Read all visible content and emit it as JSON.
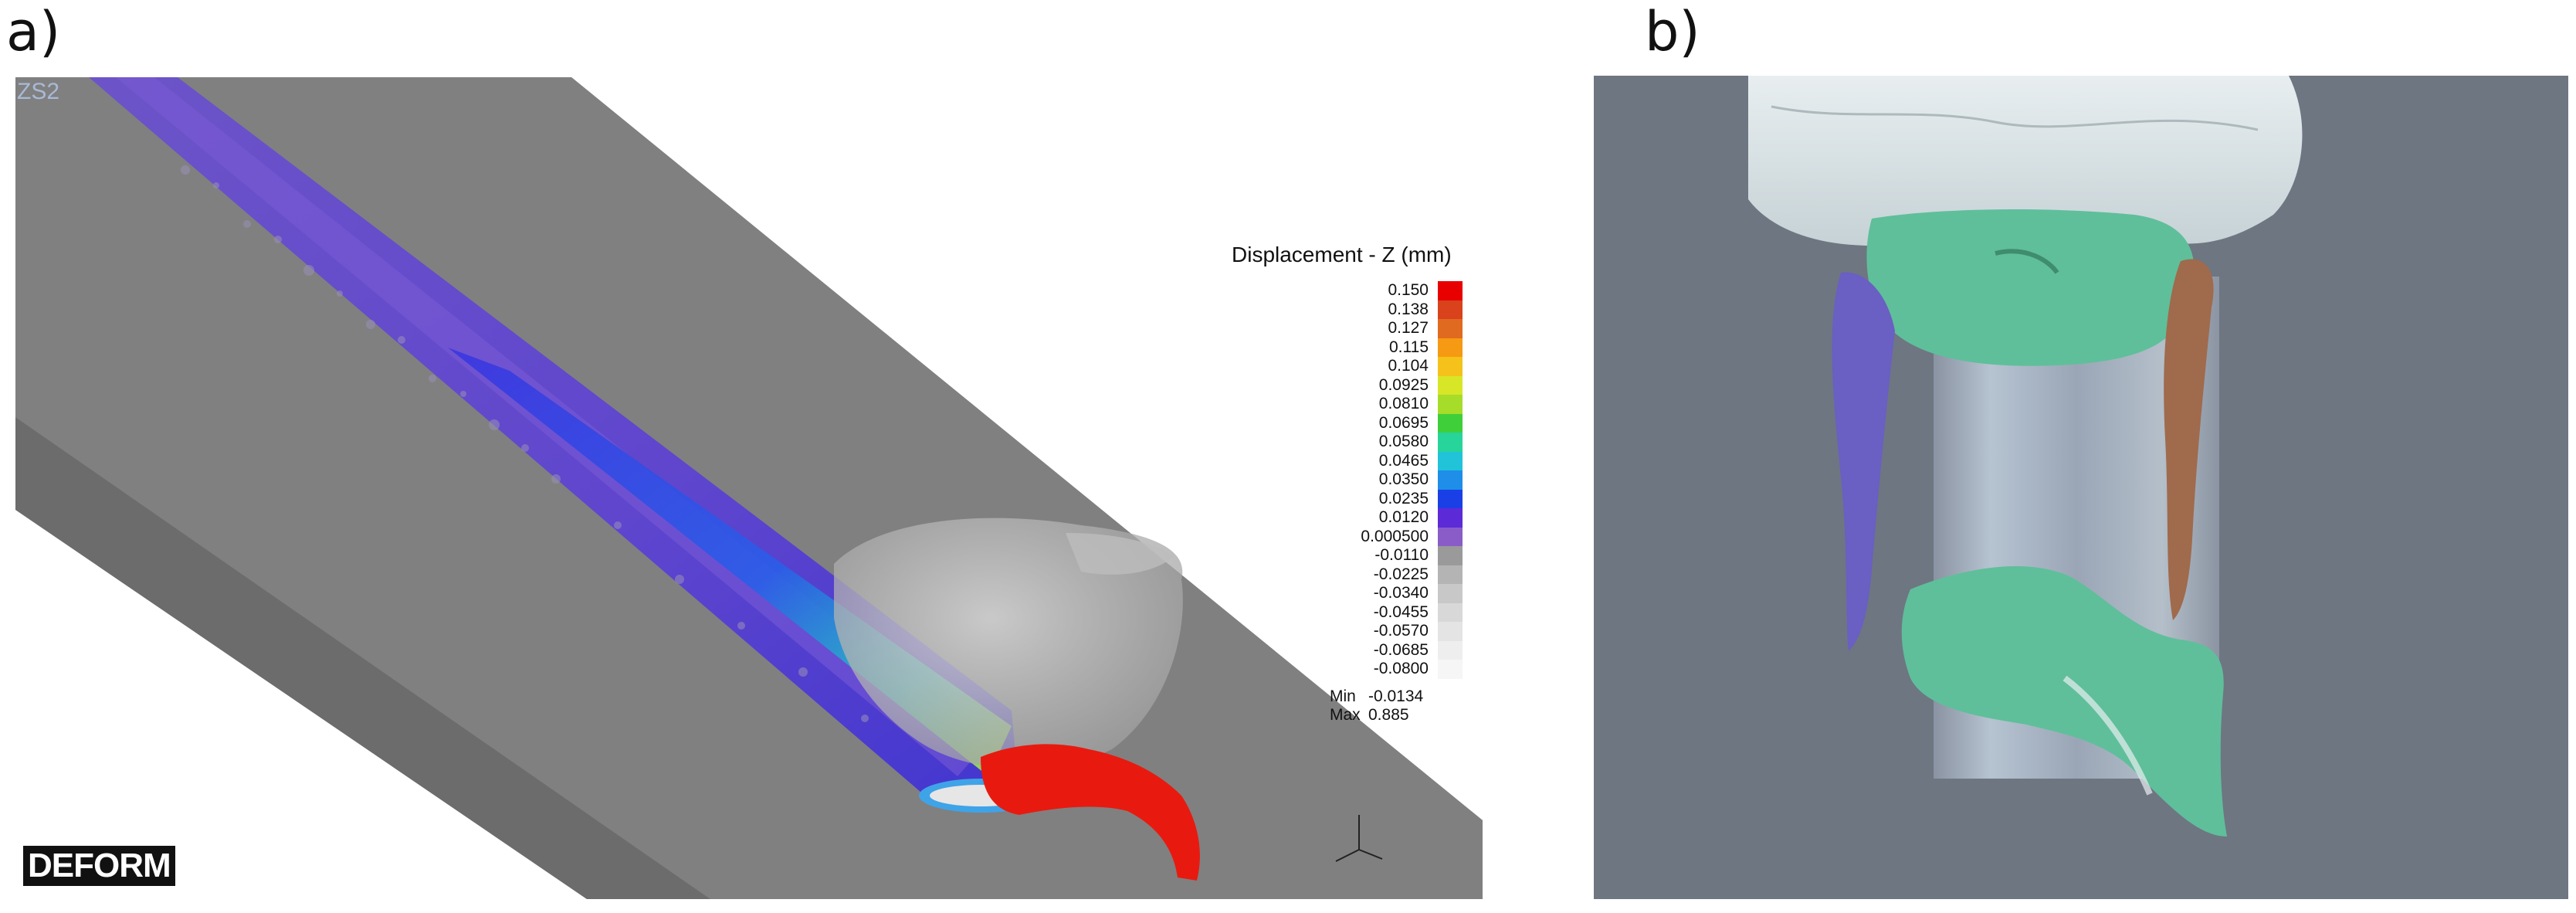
{
  "panel_a": {
    "label": "a)",
    "corner_tag": "ZS2",
    "logo_text": "DEFORM",
    "legend": {
      "title": "Displacement - Z (mm)",
      "values": [
        "0.150",
        "0.138",
        "0.127",
        "0.115",
        "0.104",
        "0.0925",
        "0.0810",
        "0.0695",
        "0.0580",
        "0.0465",
        "0.0350",
        "0.0235",
        "0.0120",
        "0.000500",
        "-0.0110",
        "-0.0225",
        "-0.0340",
        "-0.0455",
        "-0.0570",
        "-0.0685",
        "-0.0800"
      ],
      "colors": [
        "#e80000",
        "#d9421c",
        "#e06a1f",
        "#f59a12",
        "#f4c21a",
        "#d8e628",
        "#a6dc2a",
        "#3fcf3a",
        "#27d49a",
        "#20c3d8",
        "#1e8ee8",
        "#1a3fe6",
        "#5d2ad8",
        "#8a5cc8",
        "#9a9a9a",
        "#b4b4b4",
        "#c8c8c8",
        "#d8d8d8",
        "#e4e4e4",
        "#eeeeee",
        "#f6f6f6"
      ],
      "min_label": "Min",
      "min_value": "-0.0134",
      "max_label": "Max",
      "max_value": "0.885"
    }
  },
  "panel_b": {
    "label": "b)"
  }
}
